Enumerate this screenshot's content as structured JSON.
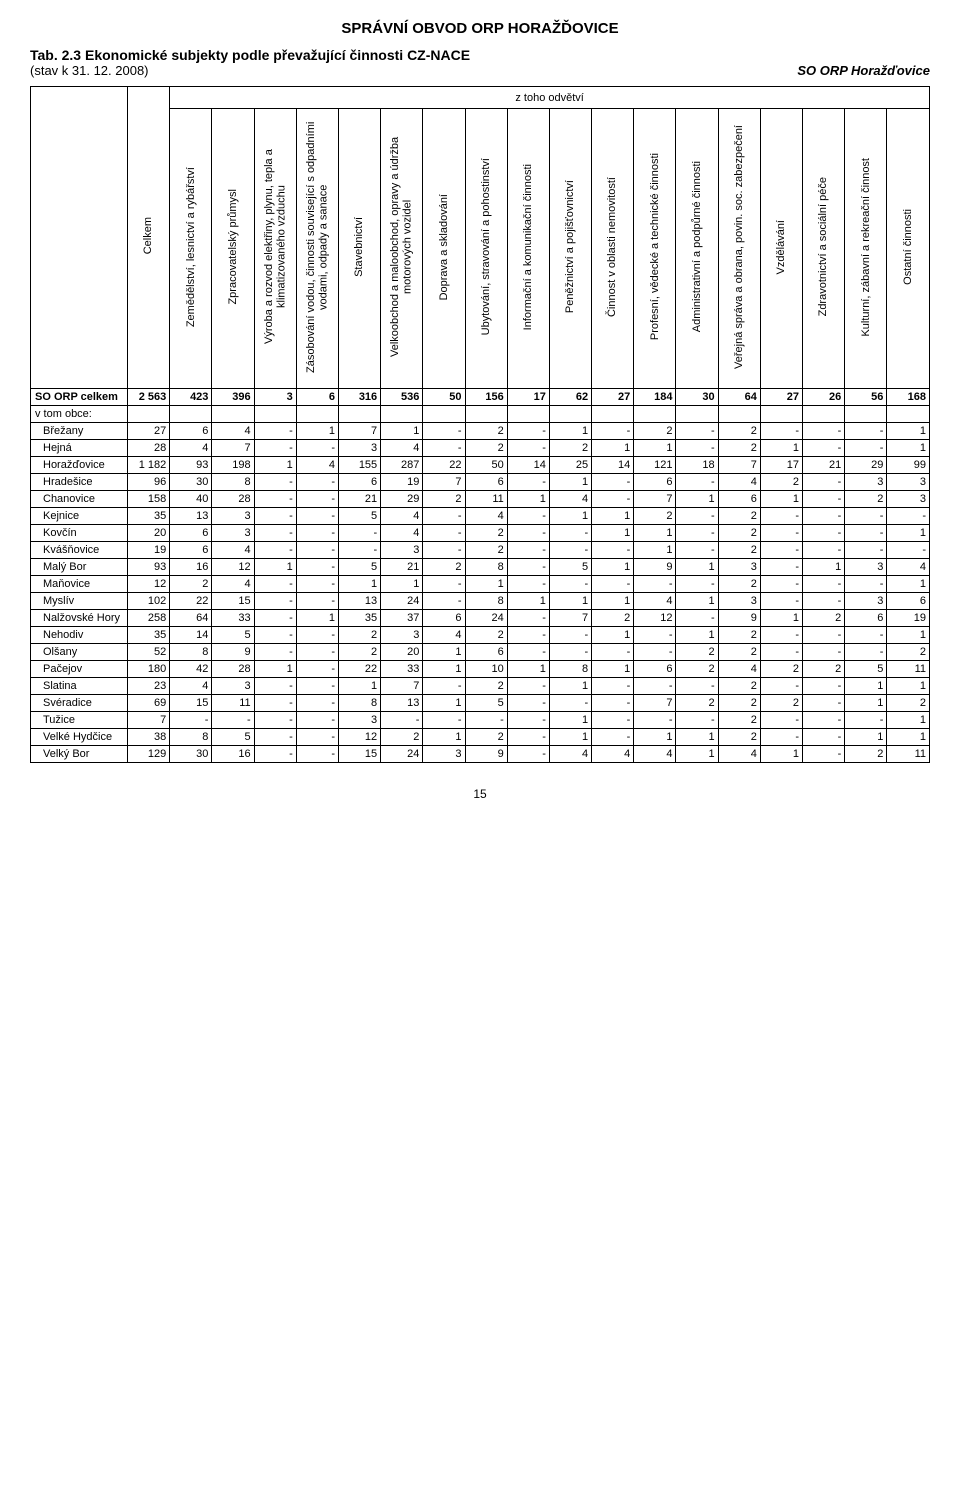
{
  "header": {
    "title": "SPRÁVNÍ OBVOD ORP HORAŽĎOVICE",
    "tab_title": "Tab. 2.3 Ekonomické subjekty podle převažující činnosti CZ-NACE",
    "subtitle_left": "(stav k 31. 12. 2008)",
    "subtitle_right": "SO ORP Horažďovice",
    "branch_header": "z toho odvětví"
  },
  "columns": [
    "Celkem",
    "Zemědělství, lesnictví a rybářství",
    "Zpracovatelský průmysl",
    "Výroba a rozvod elektřiny, plynu, tepla a klimatizovaného vzduchu",
    "Zásobování vodou, činnosti související s odpadními vodami, odpady a sanace",
    "Stavebnictví",
    "Velkoobchod a maloobchod, opravy a údržba motorových vozidel",
    "Doprava a skladování",
    "Ubytování, stravování a pohostinství",
    "Informační a komunikační činnosti",
    "Peněžnictví a pojišťovnictví",
    "Činnost v oblasti nemovitostí",
    "Profesní, vědecké a technické činnosti",
    "Administrativní a podpůrné činnosti",
    "Veřejná správa a obrana, povin. soc. zabezpečení",
    "Vzdělávání",
    "Zdravotnictví a sociální péče",
    "Kulturní, zábavní a rekreační činnost",
    "Ostatní činnosti"
  ],
  "total_label": "SO ORP celkem",
  "section_label": "v tom obce:",
  "total_row": [
    "2 563",
    "423",
    "396",
    "3",
    "6",
    "316",
    "536",
    "50",
    "156",
    "17",
    "62",
    "27",
    "184",
    "30",
    "64",
    "27",
    "26",
    "56",
    "168"
  ],
  "rows": [
    {
      "name": "Břežany",
      "v": [
        "27",
        "6",
        "4",
        "-",
        "1",
        "7",
        "1",
        "-",
        "2",
        "-",
        "1",
        "-",
        "2",
        "-",
        "2",
        "-",
        "-",
        "-",
        "1"
      ]
    },
    {
      "name": "Hejná",
      "v": [
        "28",
        "4",
        "7",
        "-",
        "-",
        "3",
        "4",
        "-",
        "2",
        "-",
        "2",
        "1",
        "1",
        "-",
        "2",
        "1",
        "-",
        "-",
        "1"
      ]
    },
    {
      "name": "Horažďovice",
      "v": [
        "1 182",
        "93",
        "198",
        "1",
        "4",
        "155",
        "287",
        "22",
        "50",
        "14",
        "25",
        "14",
        "121",
        "18",
        "7",
        "17",
        "21",
        "29",
        "99"
      ]
    },
    {
      "name": "Hradešice",
      "v": [
        "96",
        "30",
        "8",
        "-",
        "-",
        "6",
        "19",
        "7",
        "6",
        "-",
        "1",
        "-",
        "6",
        "-",
        "4",
        "2",
        "-",
        "3",
        "3"
      ]
    },
    {
      "name": "Chanovice",
      "v": [
        "158",
        "40",
        "28",
        "-",
        "-",
        "21",
        "29",
        "2",
        "11",
        "1",
        "4",
        "-",
        "7",
        "1",
        "6",
        "1",
        "-",
        "2",
        "3"
      ]
    },
    {
      "name": "Kejnice",
      "v": [
        "35",
        "13",
        "3",
        "-",
        "-",
        "5",
        "4",
        "-",
        "4",
        "-",
        "1",
        "1",
        "2",
        "-",
        "2",
        "-",
        "-",
        "-",
        "-"
      ]
    },
    {
      "name": "Kovčín",
      "v": [
        "20",
        "6",
        "3",
        "-",
        "-",
        "-",
        "4",
        "-",
        "2",
        "-",
        "-",
        "1",
        "1",
        "-",
        "2",
        "-",
        "-",
        "-",
        "1"
      ]
    },
    {
      "name": "Kvášňovice",
      "v": [
        "19",
        "6",
        "4",
        "-",
        "-",
        "-",
        "3",
        "-",
        "2",
        "-",
        "-",
        "-",
        "1",
        "-",
        "2",
        "-",
        "-",
        "-",
        "-"
      ]
    },
    {
      "name": "Malý Bor",
      "v": [
        "93",
        "16",
        "12",
        "1",
        "-",
        "5",
        "21",
        "2",
        "8",
        "-",
        "5",
        "1",
        "9",
        "1",
        "3",
        "-",
        "1",
        "3",
        "4"
      ]
    },
    {
      "name": "Maňovice",
      "v": [
        "12",
        "2",
        "4",
        "-",
        "-",
        "1",
        "1",
        "-",
        "1",
        "-",
        "-",
        "-",
        "-",
        "-",
        "2",
        "-",
        "-",
        "-",
        "1"
      ]
    },
    {
      "name": "Myslív",
      "v": [
        "102",
        "22",
        "15",
        "-",
        "-",
        "13",
        "24",
        "-",
        "8",
        "1",
        "1",
        "1",
        "4",
        "1",
        "3",
        "-",
        "-",
        "3",
        "6"
      ]
    },
    {
      "name": "Nalžovské Hory",
      "v": [
        "258",
        "64",
        "33",
        "-",
        "1",
        "35",
        "37",
        "6",
        "24",
        "-",
        "7",
        "2",
        "12",
        "-",
        "9",
        "1",
        "2",
        "6",
        "19"
      ]
    },
    {
      "name": "Nehodiv",
      "v": [
        "35",
        "14",
        "5",
        "-",
        "-",
        "2",
        "3",
        "4",
        "2",
        "-",
        "-",
        "1",
        "-",
        "1",
        "2",
        "-",
        "-",
        "-",
        "1"
      ]
    },
    {
      "name": "Olšany",
      "v": [
        "52",
        "8",
        "9",
        "-",
        "-",
        "2",
        "20",
        "1",
        "6",
        "-",
        "-",
        "-",
        "-",
        "2",
        "2",
        "-",
        "-",
        "-",
        "2"
      ]
    },
    {
      "name": "Pačejov",
      "v": [
        "180",
        "42",
        "28",
        "1",
        "-",
        "22",
        "33",
        "1",
        "10",
        "1",
        "8",
        "1",
        "6",
        "2",
        "4",
        "2",
        "2",
        "5",
        "11"
      ]
    },
    {
      "name": "Slatina",
      "v": [
        "23",
        "4",
        "3",
        "-",
        "-",
        "1",
        "7",
        "-",
        "2",
        "-",
        "1",
        "-",
        "-",
        "-",
        "2",
        "-",
        "-",
        "1",
        "1"
      ]
    },
    {
      "name": "Svéradice",
      "v": [
        "69",
        "15",
        "11",
        "-",
        "-",
        "8",
        "13",
        "1",
        "5",
        "-",
        "-",
        "-",
        "7",
        "2",
        "2",
        "2",
        "-",
        "1",
        "2"
      ]
    },
    {
      "name": "Tužice",
      "v": [
        "7",
        "-",
        "-",
        "-",
        "-",
        "3",
        "-",
        "-",
        "-",
        "-",
        "1",
        "-",
        "-",
        "-",
        "2",
        "-",
        "-",
        "-",
        "1"
      ]
    },
    {
      "name": "Velké Hydčice",
      "v": [
        "38",
        "8",
        "5",
        "-",
        "-",
        "12",
        "2",
        "1",
        "2",
        "-",
        "1",
        "-",
        "1",
        "1",
        "2",
        "-",
        "-",
        "1",
        "1"
      ]
    },
    {
      "name": "Velký Bor",
      "v": [
        "129",
        "30",
        "16",
        "-",
        "-",
        "15",
        "24",
        "3",
        "9",
        "-",
        "4",
        "4",
        "4",
        "1",
        "4",
        "1",
        "-",
        "2",
        "11"
      ]
    }
  ],
  "footer": {
    "page": "15"
  },
  "style": {
    "border_color": "#000000",
    "background_color": "#ffffff",
    "font_family": "Arial",
    "header_fontsize": 15,
    "body_fontsize": 11
  }
}
